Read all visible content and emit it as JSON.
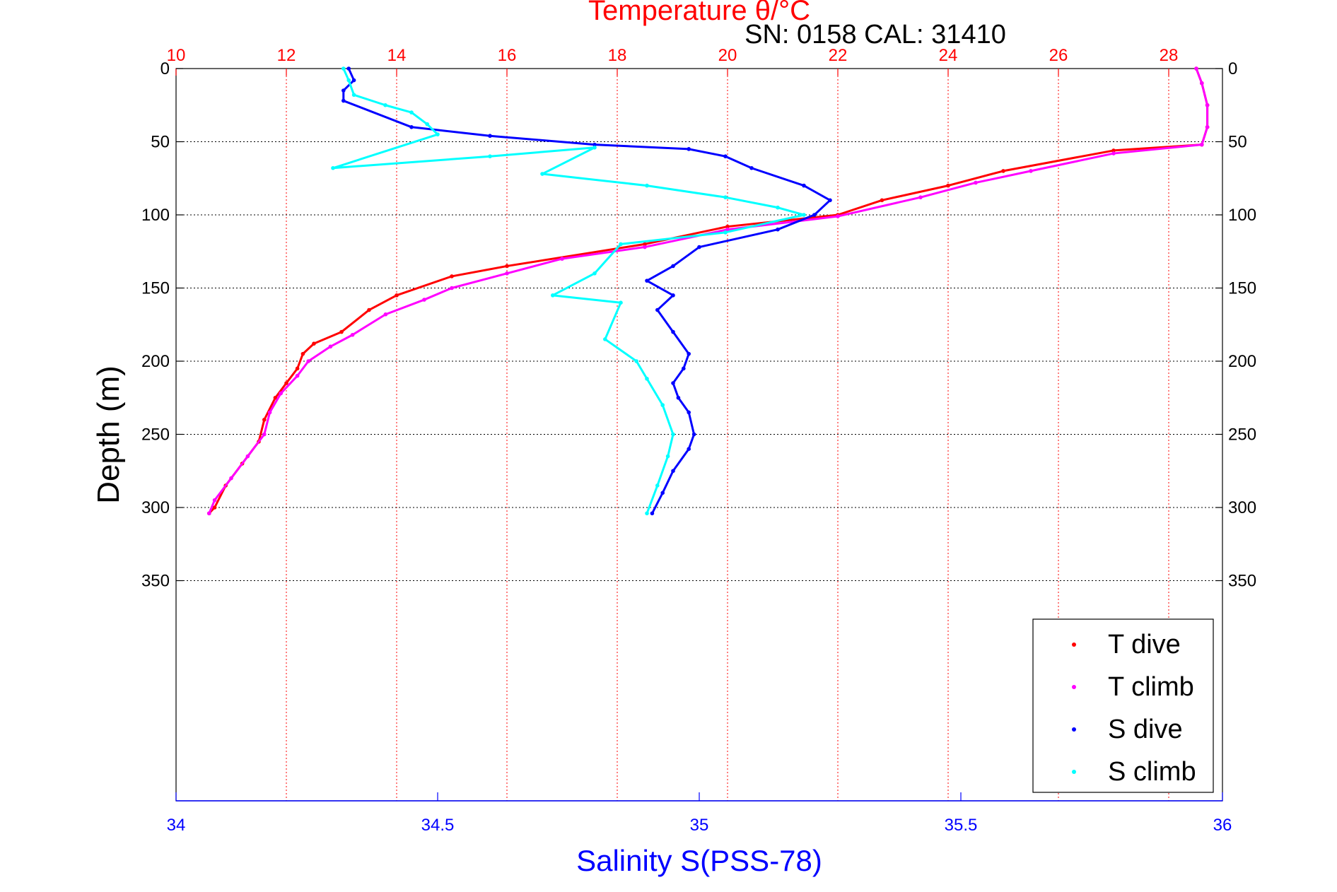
{
  "chart_data": {
    "type": "scatter",
    "title": "Temperature θ/°C",
    "subtitle": "SN: 0158  CAL: 31410",
    "ylabel": "Depth (m)",
    "xlabel": "Salinity S(PSS-78)",
    "ylim": [
      0,
      400
    ],
    "y_reversed": true,
    "temperature_axis": {
      "label": "Temperature θ/°C",
      "range": [
        10,
        29
      ],
      "ticks": [
        "10",
        "12",
        "14",
        "16",
        "18",
        "20",
        "22",
        "24",
        "26",
        "28"
      ]
    },
    "salinity_axis": {
      "label": "Salinity S(PSS-78)",
      "range": [
        34,
        36
      ],
      "ticks": [
        "34",
        "34.5",
        "35",
        "35.5",
        "36"
      ]
    },
    "depth_ticks": [
      "0",
      "50",
      "100",
      "150",
      "200",
      "250",
      "300",
      "350"
    ],
    "grid": true,
    "legend_position": "bottom-right",
    "colors": {
      "t_dive": "#ff0000",
      "t_climb": "#ff00ff",
      "s_dive": "#0000ff",
      "s_climb": "#00ffff",
      "temp_axis": "#ff0000",
      "sal_axis": "#0000ff"
    },
    "series": [
      {
        "name": "T dive",
        "axis": "temperature",
        "points": [
          [
            28.5,
            0
          ],
          [
            28.6,
            10
          ],
          [
            28.7,
            25
          ],
          [
            28.7,
            40
          ],
          [
            28.6,
            52
          ],
          [
            27.0,
            56
          ],
          [
            25.0,
            70
          ],
          [
            24.0,
            80
          ],
          [
            22.8,
            90
          ],
          [
            22.0,
            100
          ],
          [
            20.0,
            108
          ],
          [
            18.5,
            120
          ],
          [
            16.0,
            135
          ],
          [
            15.0,
            142
          ],
          [
            14.0,
            155
          ],
          [
            13.5,
            165
          ],
          [
            13.0,
            180
          ],
          [
            12.5,
            188
          ],
          [
            12.3,
            195
          ],
          [
            12.2,
            205
          ],
          [
            12.0,
            215
          ],
          [
            11.8,
            225
          ],
          [
            11.6,
            240
          ],
          [
            11.5,
            255
          ],
          [
            11.2,
            270
          ],
          [
            10.9,
            285
          ],
          [
            10.7,
            300
          ],
          [
            10.6,
            304
          ]
        ]
      },
      {
        "name": "T climb",
        "axis": "temperature",
        "points": [
          [
            28.5,
            0
          ],
          [
            28.6,
            10
          ],
          [
            28.7,
            25
          ],
          [
            28.7,
            40
          ],
          [
            28.6,
            52
          ],
          [
            27.0,
            58
          ],
          [
            25.5,
            70
          ],
          [
            24.5,
            78
          ],
          [
            23.5,
            88
          ],
          [
            22.0,
            101
          ],
          [
            20.0,
            110
          ],
          [
            18.5,
            122
          ],
          [
            17.0,
            130
          ],
          [
            16.0,
            140
          ],
          [
            15.0,
            150
          ],
          [
            14.5,
            158
          ],
          [
            13.8,
            168
          ],
          [
            13.2,
            182
          ],
          [
            12.8,
            190
          ],
          [
            12.4,
            200
          ],
          [
            12.2,
            210
          ],
          [
            11.9,
            222
          ],
          [
            11.7,
            235
          ],
          [
            11.6,
            250
          ],
          [
            11.3,
            265
          ],
          [
            11.0,
            280
          ],
          [
            10.7,
            295
          ],
          [
            10.6,
            304
          ]
        ]
      },
      {
        "name": "S dive",
        "axis": "salinity",
        "points": [
          [
            34.33,
            0
          ],
          [
            34.34,
            8
          ],
          [
            34.32,
            15
          ],
          [
            34.32,
            22
          ],
          [
            34.45,
            40
          ],
          [
            34.6,
            46
          ],
          [
            34.8,
            52
          ],
          [
            34.98,
            55
          ],
          [
            35.05,
            60
          ],
          [
            35.1,
            68
          ],
          [
            35.2,
            80
          ],
          [
            35.25,
            90
          ],
          [
            35.22,
            100
          ],
          [
            35.15,
            110
          ],
          [
            35.0,
            122
          ],
          [
            34.95,
            135
          ],
          [
            34.9,
            145
          ],
          [
            34.95,
            155
          ],
          [
            34.92,
            165
          ],
          [
            34.95,
            180
          ],
          [
            34.98,
            195
          ],
          [
            34.97,
            205
          ],
          [
            34.95,
            215
          ],
          [
            34.96,
            225
          ],
          [
            34.98,
            235
          ],
          [
            34.99,
            250
          ],
          [
            34.98,
            260
          ],
          [
            34.95,
            275
          ],
          [
            34.93,
            290
          ],
          [
            34.91,
            304
          ]
        ]
      },
      {
        "name": "S climb",
        "axis": "salinity",
        "points": [
          [
            34.32,
            0
          ],
          [
            34.33,
            8
          ],
          [
            34.34,
            18
          ],
          [
            34.4,
            25
          ],
          [
            34.45,
            30
          ],
          [
            34.48,
            38
          ],
          [
            34.5,
            45
          ],
          [
            34.3,
            68
          ],
          [
            34.6,
            60
          ],
          [
            34.8,
            54
          ],
          [
            34.7,
            72
          ],
          [
            34.9,
            80
          ],
          [
            35.05,
            88
          ],
          [
            35.15,
            95
          ],
          [
            35.2,
            100
          ],
          [
            35.05,
            112
          ],
          [
            34.85,
            120
          ],
          [
            34.8,
            140
          ],
          [
            34.72,
            155
          ],
          [
            34.85,
            160
          ],
          [
            34.82,
            185
          ],
          [
            34.88,
            200
          ],
          [
            34.9,
            212
          ],
          [
            34.93,
            230
          ],
          [
            34.95,
            250
          ],
          [
            34.94,
            265
          ],
          [
            34.92,
            285
          ],
          [
            34.9,
            304
          ]
        ]
      }
    ]
  }
}
